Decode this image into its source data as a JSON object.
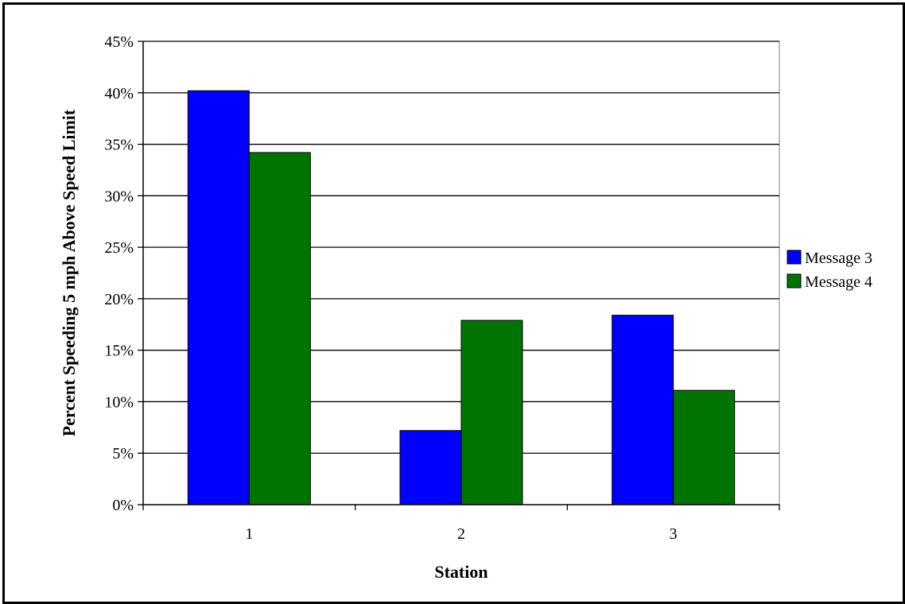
{
  "chart_data": {
    "type": "bar",
    "categories": [
      "1",
      "2",
      "3"
    ],
    "series": [
      {
        "name": "Message 3",
        "values": [
          40.2,
          7.2,
          18.4
        ],
        "color": "#0000ff"
      },
      {
        "name": "Message 4",
        "values": [
          34.2,
          17.9,
          11.1
        ],
        "color": "#007300"
      }
    ],
    "title": "",
    "xlabel": "Station",
    "ylabel": "Percent Speeding 5 mph Above Speed Limit",
    "ylim": [
      0,
      45
    ],
    "yticks": [
      0,
      5,
      10,
      15,
      20,
      25,
      30,
      35,
      40,
      45
    ],
    "ytick_labels": [
      "0%",
      "5%",
      "10%",
      "15%",
      "20%",
      "25%",
      "30%",
      "35%",
      "40%",
      "45%"
    ],
    "plot_background": "#ffffff",
    "grid": true,
    "legend_position": "right"
  }
}
